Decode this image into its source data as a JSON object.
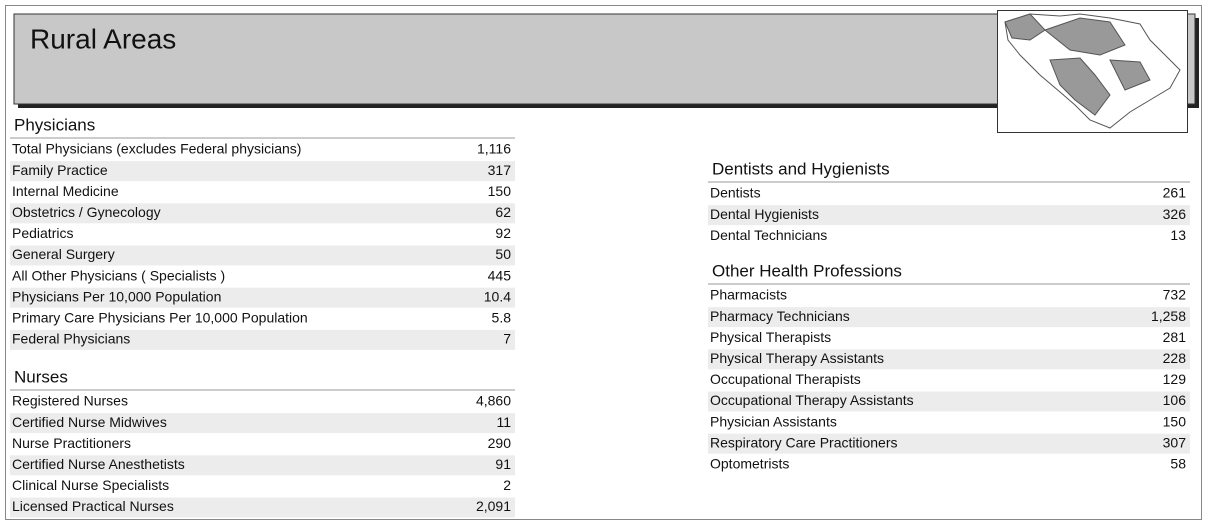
{
  "header": {
    "title": "Rural Areas"
  },
  "sections": [
    {
      "title": "Physicians",
      "rows": [
        [
          "Total Physicians (excludes Federal physicians)",
          "1,116"
        ],
        [
          "Family Practice",
          "317"
        ],
        [
          "Internal Medicine",
          "150"
        ],
        [
          "Obstetrics / Gynecology",
          "62"
        ],
        [
          "Pediatrics",
          "92"
        ],
        [
          "General Surgery",
          "50"
        ],
        [
          "All Other Physicians ( Specialists )",
          "445"
        ],
        [
          "Physicians Per 10,000 Population",
          "10.4"
        ],
        [
          "Primary Care Physicians Per 10,000 Population",
          "5.8"
        ],
        [
          "Federal Physicians",
          "7"
        ]
      ]
    },
    {
      "title": "Nurses",
      "rows": [
        [
          "Registered Nurses",
          "4,860"
        ],
        [
          "Certified Nurse Midwives",
          "11"
        ],
        [
          "Nurse Practitioners",
          "290"
        ],
        [
          "Certified Nurse Anesthetists",
          "91"
        ],
        [
          "Clinical Nurse Specialists",
          "2"
        ],
        [
          "Licensed Practical Nurses",
          "2,091"
        ]
      ]
    },
    {
      "title": "Dentists and Hygienists",
      "rows": [
        [
          "Dentists",
          "261"
        ],
        [
          "Dental Hygienists",
          "326"
        ],
        [
          "Dental Technicians",
          "13"
        ]
      ]
    },
    {
      "title": "Other Health Professions",
      "rows": [
        [
          "Pharmacists",
          "732"
        ],
        [
          "Pharmacy Technicians",
          "1,258"
        ],
        [
          "Physical Therapists",
          "281"
        ],
        [
          "Physical Therapy Assistants",
          "228"
        ],
        [
          "Occupational Therapists",
          "129"
        ],
        [
          "Occupational Therapy Assistants",
          "106"
        ],
        [
          "Physician Assistants",
          "150"
        ],
        [
          "Respiratory Care Practitioners",
          "307"
        ],
        [
          "Optometrists",
          "58"
        ]
      ]
    }
  ]
}
